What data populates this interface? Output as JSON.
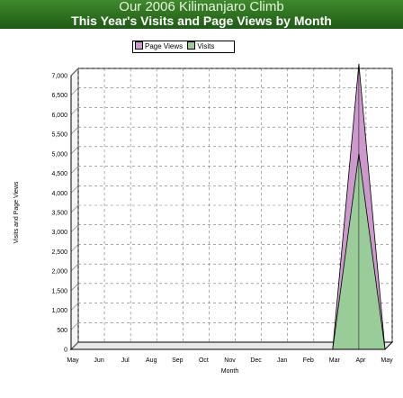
{
  "header": {
    "title": "Our 2006 Kilimanjaro Climb",
    "subtitle": "This Year's Visits and Page Views by Month"
  },
  "legend": {
    "page_views_label": "Page Views",
    "visits_label": "Visits"
  },
  "chart_data": {
    "type": "area",
    "categories": [
      "May",
      "Jun",
      "Jul",
      "Aug",
      "Sep",
      "Oct",
      "Nov",
      "Dec",
      "Jan",
      "Feb",
      "Mar",
      "Apr",
      "May"
    ],
    "series": [
      {
        "name": "Page Views",
        "color": "#cc99cc",
        "values": [
          0,
          0,
          0,
          0,
          0,
          0,
          0,
          0,
          0,
          0,
          0,
          7300,
          0
        ]
      },
      {
        "name": "Visits",
        "color": "#99cc99",
        "values": [
          0,
          0,
          0,
          0,
          0,
          0,
          0,
          0,
          0,
          0,
          0,
          5000,
          0
        ]
      }
    ],
    "xlabel": "Month",
    "ylabel": "Visits and Page Views",
    "ylim": [
      0,
      7000
    ],
    "yticks": [
      0,
      500,
      1000,
      1500,
      2000,
      2500,
      3000,
      3500,
      4000,
      4500,
      5000,
      5500,
      6000,
      6500,
      7000
    ],
    "grid": true,
    "legend_position": "top-center"
  }
}
